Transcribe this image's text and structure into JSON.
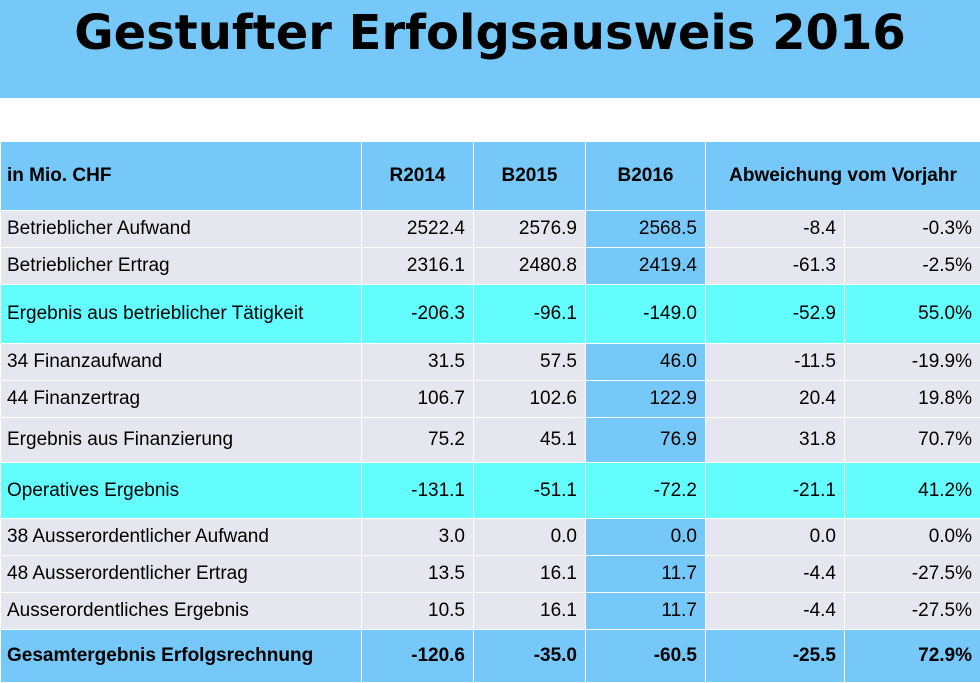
{
  "title": "Gestufter Erfolgsausweis 2016",
  "table": {
    "headers": {
      "label": "in Mio. CHF",
      "r2014": "R2014",
      "b2015": "B2015",
      "b2016": "B2016",
      "deviation": "Abweichung vom Vorjahr"
    },
    "rows": [
      {
        "label": "Betrieblicher Aufwand",
        "r2014": "2522.4",
        "b2015": "2576.9",
        "b2016": "2568.5",
        "abs": "-8.4",
        "pct": "-0.3%"
      },
      {
        "label": "Betrieblicher Ertrag",
        "r2014": "2316.1",
        "b2015": "2480.8",
        "b2016": "2419.4",
        "abs": "-61.3",
        "pct": "-2.5%"
      },
      {
        "label": "Ergebnis aus betrieblicher Tätigkeit",
        "r2014": "-206.3",
        "b2015": "-96.1",
        "b2016": "-149.0",
        "abs": "-52.9",
        "pct": "55.0%"
      },
      {
        "label": "34 Finanzaufwand",
        "r2014": "31.5",
        "b2015": "57.5",
        "b2016": "46.0",
        "abs": "-11.5",
        "pct": "-19.9%"
      },
      {
        "label": "44 Finanzertrag",
        "r2014": "106.7",
        "b2015": "102.6",
        "b2016": "122.9",
        "abs": "20.4",
        "pct": "19.8%"
      },
      {
        "label": "Ergebnis aus Finanzierung",
        "r2014": "75.2",
        "b2015": "45.1",
        "b2016": "76.9",
        "abs": "31.8",
        "pct": "70.7%"
      },
      {
        "label": "Operatives Ergebnis",
        "r2014": "-131.1",
        "b2015": "-51.1",
        "b2016": "-72.2",
        "abs": "-21.1",
        "pct": "41.2%"
      },
      {
        "label": "38 Ausserordentlicher Aufwand",
        "r2014": "3.0",
        "b2015": "0.0",
        "b2016": "0.0",
        "abs": "0.0",
        "pct": "0.0%"
      },
      {
        "label": "48 Ausserordentlicher Ertrag",
        "r2014": "13.5",
        "b2015": "16.1",
        "b2016": "11.7",
        "abs": "-4.4",
        "pct": "-27.5%"
      },
      {
        "label": "Ausserordentliches Ergebnis",
        "r2014": "10.5",
        "b2015": "16.1",
        "b2016": "11.7",
        "abs": "-4.4",
        "pct": "-27.5%"
      },
      {
        "label": "Gesamtergebnis Erfolgsrechnung",
        "r2014": "-120.6",
        "b2015": "-35.0",
        "b2016": "-60.5",
        "abs": "-25.5",
        "pct": "72.9%"
      }
    ]
  },
  "colors": {
    "header_blue": "#75c8f7",
    "subtotal_cyan": "#63fdfe",
    "row_gray": "#e6e6ee"
  }
}
